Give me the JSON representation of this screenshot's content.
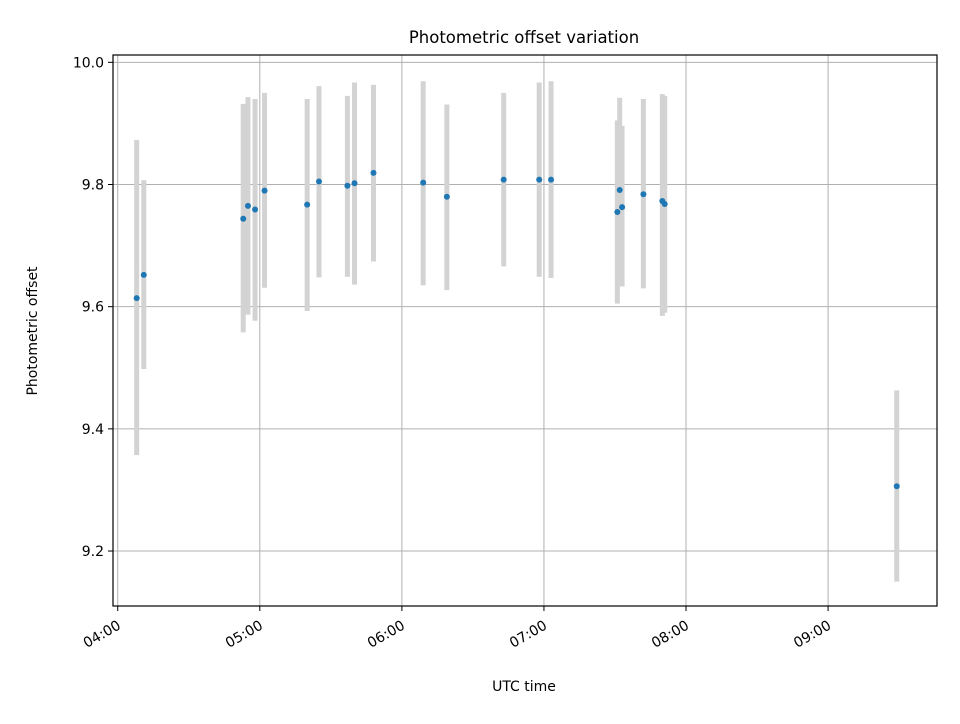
{
  "chart_data": {
    "type": "scatter",
    "title": "Photometric offset variation",
    "xlabel": "UTC time",
    "ylabel": "Photometric offset",
    "x_ticks": [
      "04:00",
      "05:00",
      "06:00",
      "07:00",
      "08:00",
      "09:00"
    ],
    "y_ticks": [
      "9.2",
      "9.4",
      "9.6",
      "9.8",
      "10.0"
    ],
    "xlim": [
      "03:58",
      "09:46"
    ],
    "ylim": [
      9.11,
      10.012
    ],
    "grid": true,
    "colors": {
      "points": "#1f77b4",
      "error_bars": "#d3d3d3",
      "grid": "#b0b0b0"
    },
    "points": [
      {
        "x": "04:08",
        "y": 9.614,
        "ylow": 9.357,
        "yhigh": 9.873
      },
      {
        "x": "04:11",
        "y": 9.652,
        "ylow": 9.498,
        "yhigh": 9.807
      },
      {
        "x": "04:53",
        "y": 9.744,
        "ylow": 9.558,
        "yhigh": 9.932
      },
      {
        "x": "04:55",
        "y": 9.765,
        "ylow": 9.587,
        "yhigh": 9.943
      },
      {
        "x": "04:58",
        "y": 9.759,
        "ylow": 9.577,
        "yhigh": 9.94
      },
      {
        "x": "05:02",
        "y": 9.79,
        "ylow": 9.631,
        "yhigh": 9.95
      },
      {
        "x": "05:20",
        "y": 9.767,
        "ylow": 9.593,
        "yhigh": 9.94
      },
      {
        "x": "05:25",
        "y": 9.805,
        "ylow": 9.648,
        "yhigh": 9.961
      },
      {
        "x": "05:37",
        "y": 9.798,
        "ylow": 9.649,
        "yhigh": 9.945
      },
      {
        "x": "05:40",
        "y": 9.802,
        "ylow": 9.636,
        "yhigh": 9.967
      },
      {
        "x": "05:48",
        "y": 9.819,
        "ylow": 9.674,
        "yhigh": 9.963
      },
      {
        "x": "06:09",
        "y": 9.803,
        "ylow": 9.635,
        "yhigh": 9.969
      },
      {
        "x": "06:19",
        "y": 9.78,
        "ylow": 9.627,
        "yhigh": 9.931
      },
      {
        "x": "06:43",
        "y": 9.808,
        "ylow": 9.666,
        "yhigh": 9.95
      },
      {
        "x": "06:58",
        "y": 9.808,
        "ylow": 9.649,
        "yhigh": 9.967
      },
      {
        "x": "07:03",
        "y": 9.808,
        "ylow": 9.647,
        "yhigh": 9.969
      },
      {
        "x": "07:31",
        "y": 9.755,
        "ylow": 9.605,
        "yhigh": 9.905
      },
      {
        "x": "07:32",
        "y": 9.791,
        "ylow": 9.64,
        "yhigh": 9.942
      },
      {
        "x": "07:33",
        "y": 9.763,
        "ylow": 9.633,
        "yhigh": 9.896
      },
      {
        "x": "07:42",
        "y": 9.784,
        "ylow": 9.63,
        "yhigh": 9.94
      },
      {
        "x": "07:50",
        "y": 9.773,
        "ylow": 9.585,
        "yhigh": 9.948
      },
      {
        "x": "07:51",
        "y": 9.768,
        "ylow": 9.59,
        "yhigh": 9.945
      },
      {
        "x": "09:29",
        "y": 9.306,
        "ylow": 9.15,
        "yhigh": 9.463
      }
    ]
  }
}
